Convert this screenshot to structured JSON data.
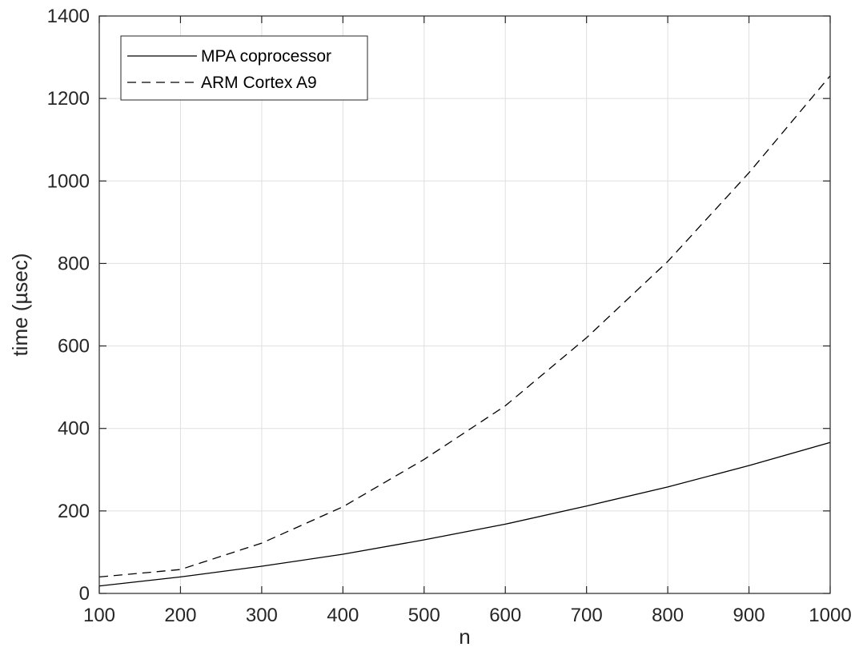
{
  "chart_data": {
    "type": "line",
    "xlabel": "n",
    "ylabel": "time (µsec)",
    "xlim": [
      100,
      1000
    ],
    "ylim": [
      0,
      1400
    ],
    "xticks": [
      "100",
      "200",
      "300",
      "400",
      "500",
      "600",
      "700",
      "800",
      "900",
      "1000"
    ],
    "yticks": [
      "0",
      "200",
      "400",
      "600",
      "800",
      "1000",
      "1200",
      "1400"
    ],
    "grid": true,
    "legend_position": "top-left",
    "x": [
      100,
      200,
      300,
      400,
      500,
      600,
      700,
      800,
      900,
      1000
    ],
    "series": [
      {
        "name": "MPA coprocessor",
        "line_style": "solid",
        "color": "#000000",
        "values": [
          18,
          40,
          66,
          95,
          130,
          168,
          212,
          258,
          310,
          366
        ]
      },
      {
        "name": "ARM Cortex A9",
        "line_style": "dashed",
        "color": "#000000",
        "values": [
          40,
          58,
          122,
          210,
          325,
          455,
          620,
          805,
          1020,
          1255
        ]
      }
    ]
  }
}
